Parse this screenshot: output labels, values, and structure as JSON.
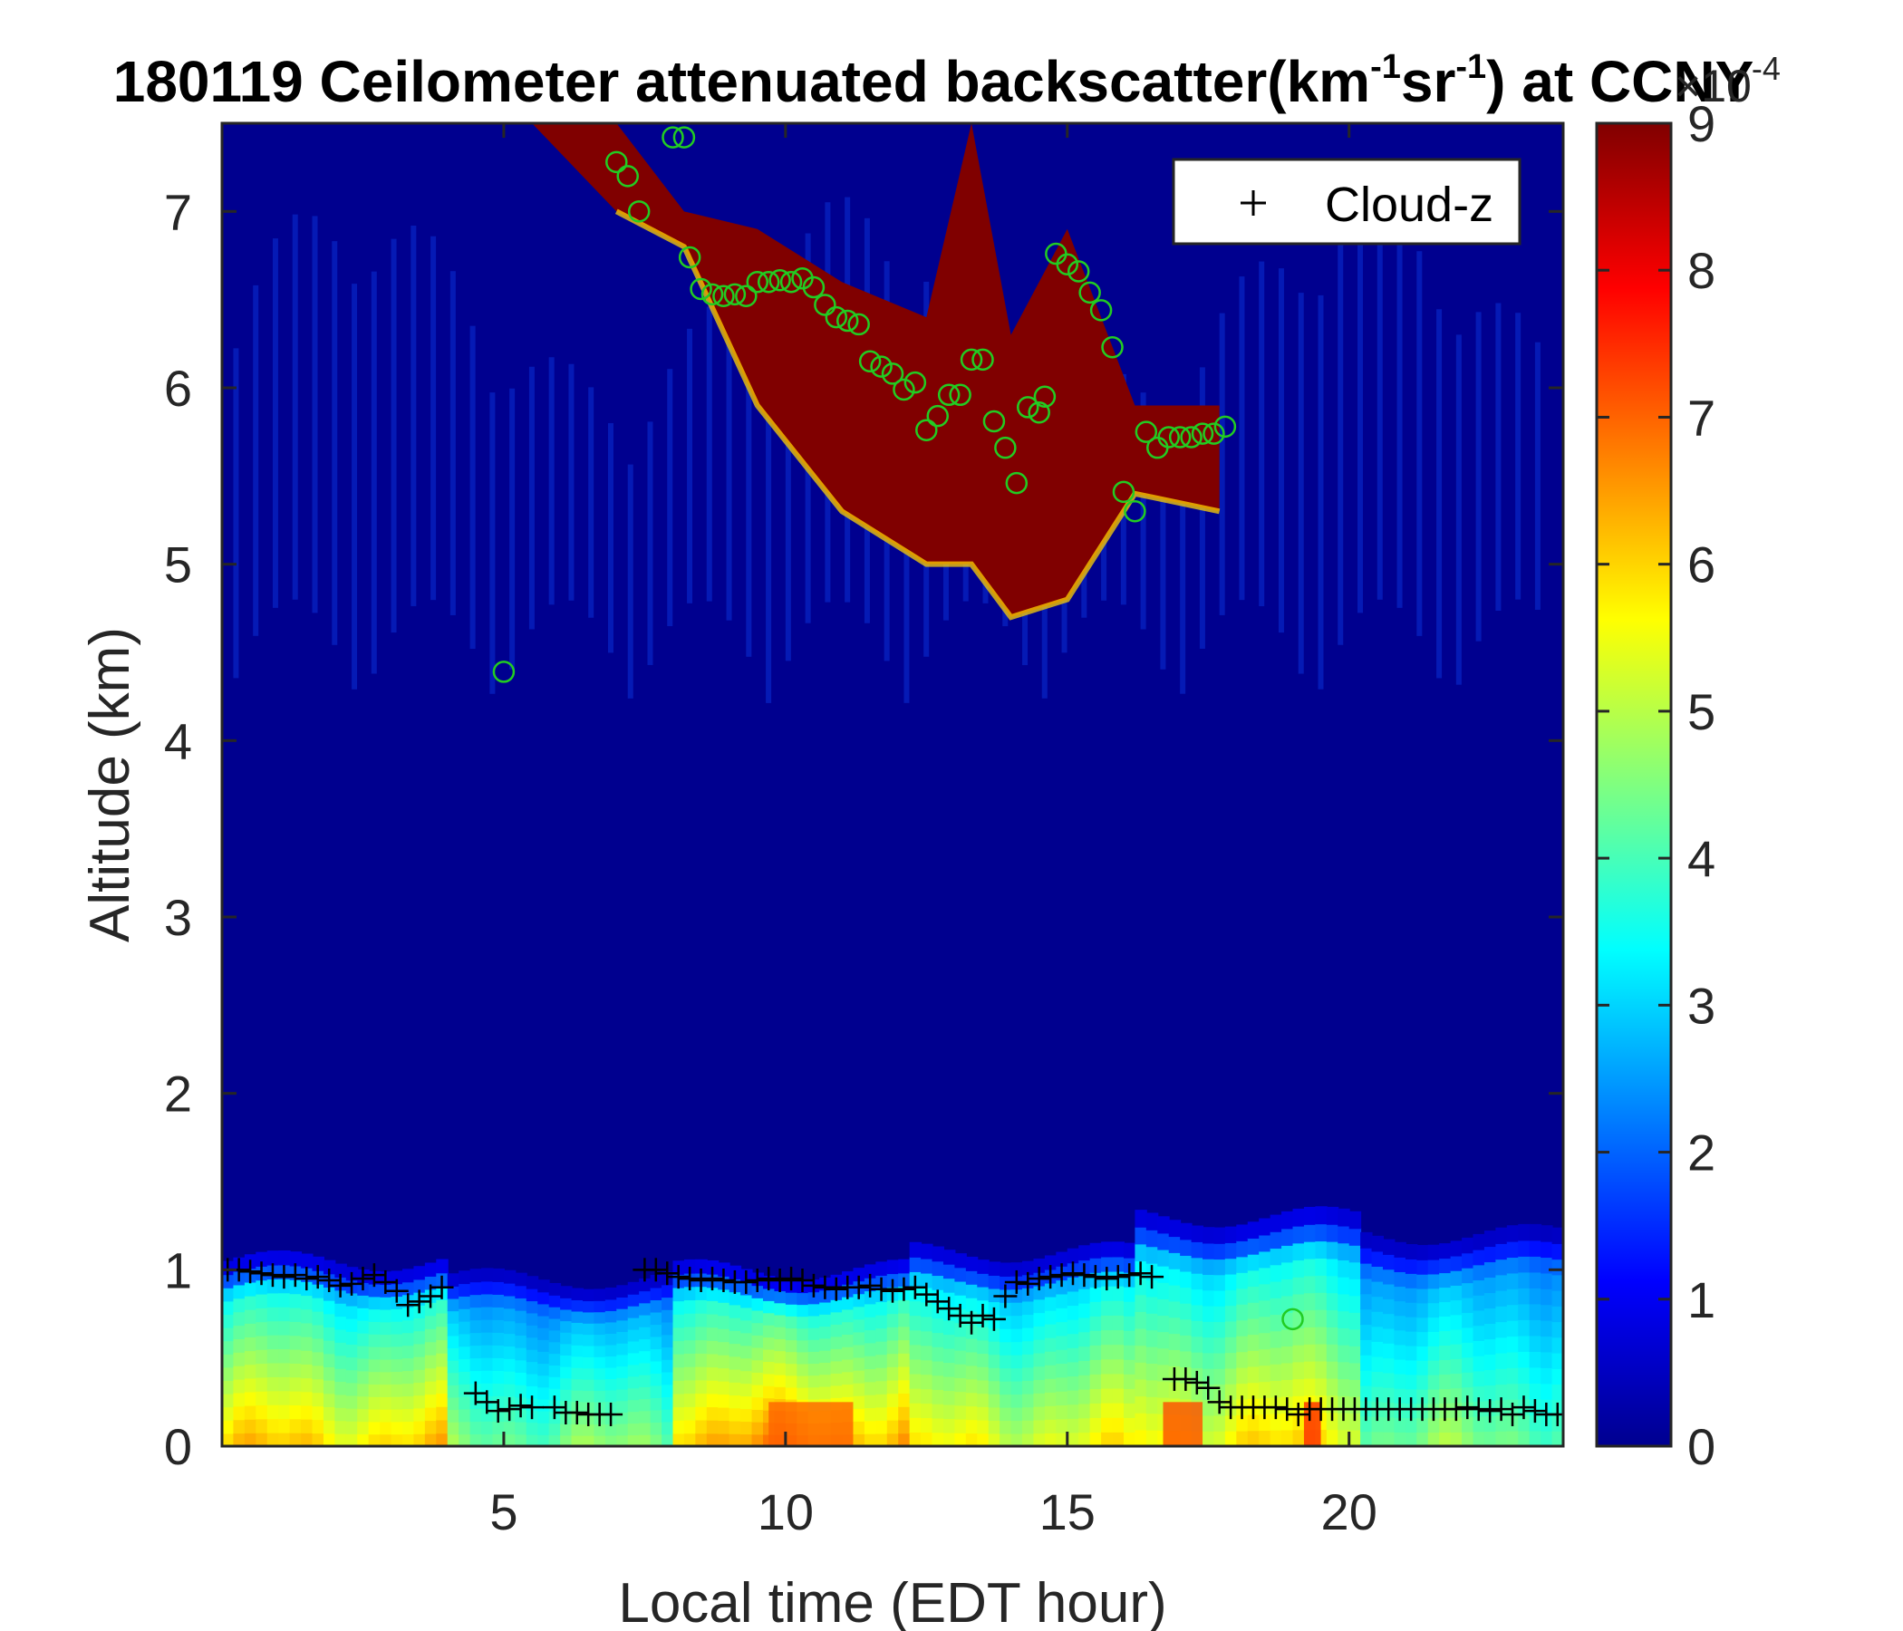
{
  "chart_data": {
    "type": "heatmap",
    "title": "180119 Ceilometer attenuated backscatter(km-1sr-1) at CCNY",
    "title_parts": {
      "prefix": "180119 Ceilometer attenuated backscatter(km",
      "sup1": "-1",
      "mid": "sr",
      "sup2": "-1",
      "suffix": ") at CCNY"
    },
    "xlabel": "Local time (EDT hour)",
    "ylabel": "Altitude (km)",
    "xlim": [
      0,
      23.8
    ],
    "ylim": [
      0,
      7.5
    ],
    "xticks": [
      5,
      10,
      15,
      20
    ],
    "yticks": [
      0,
      1,
      2,
      3,
      4,
      5,
      6,
      7
    ],
    "colorbar": {
      "colormap": "jet",
      "range": [
        0,
        9
      ],
      "ticks": [
        0,
        1,
        2,
        3,
        4,
        5,
        6,
        7,
        8,
        9
      ],
      "exponent_label": "×10",
      "exponent": "-4"
    },
    "legend": {
      "entries": [
        "Cloud-z"
      ],
      "position": "top-right",
      "marker": "+"
    },
    "colors": {
      "background": "#00008f",
      "cloud_core": "#800000",
      "circle_marker": "#22cc22",
      "plus_marker": "#000000"
    },
    "backscatter_profile": {
      "description_units": "x10^-4 km-1 sr-1",
      "segments": [
        {
          "x": [
            0,
            4
          ],
          "surface": 6.0,
          "layer_top": 1.05
        },
        {
          "x": [
            4,
            8
          ],
          "surface": 4.5,
          "layer_top": 0.95
        },
        {
          "x": [
            8,
            12
          ],
          "surface": 6.5,
          "layer_top": 1.0
        },
        {
          "x": [
            12,
            16
          ],
          "surface": 5.5,
          "layer_top": 1.1
        },
        {
          "x": [
            16,
            20
          ],
          "surface": 5.8,
          "layer_top": 1.3
        },
        {
          "x": [
            20,
            23.8
          ],
          "surface": 4.5,
          "layer_top": 1.2
        }
      ]
    },
    "cloud_layer": {
      "value": 9,
      "top_edge": [
        [
          5.5,
          7.5
        ],
        [
          7,
          7.5
        ],
        [
          8.2,
          7.0
        ],
        [
          9.5,
          6.9
        ],
        [
          11,
          6.6
        ],
        [
          12.5,
          6.4
        ],
        [
          13.3,
          7.5
        ],
        [
          14,
          6.3
        ],
        [
          15,
          6.9
        ],
        [
          16.2,
          5.9
        ],
        [
          17.7,
          5.9
        ]
      ],
      "bottom_edge": [
        [
          7,
          7.0
        ],
        [
          8.2,
          6.8
        ],
        [
          9.5,
          5.9
        ],
        [
          11,
          5.3
        ],
        [
          12.5,
          5.0
        ],
        [
          13.3,
          5.0
        ],
        [
          14,
          4.7
        ],
        [
          15,
          4.8
        ],
        [
          16.2,
          5.4
        ],
        [
          17.7,
          5.3
        ]
      ]
    },
    "series": [
      {
        "name": "Cloud-z",
        "marker": "+",
        "x": [
          0.1,
          0.3,
          0.5,
          0.7,
          0.9,
          1.1,
          1.3,
          1.5,
          1.7,
          1.9,
          2.1,
          2.3,
          2.5,
          2.7,
          2.9,
          3.1,
          3.3,
          3.5,
          3.7,
          3.9,
          4.5,
          4.7,
          4.9,
          5.1,
          5.3,
          5.5,
          5.9,
          6.1,
          6.3,
          6.5,
          6.7,
          6.9,
          7.5,
          7.7,
          7.9,
          8.1,
          8.3,
          8.5,
          8.7,
          8.9,
          9.1,
          9.3,
          9.5,
          9.7,
          9.9,
          10.1,
          10.3,
          10.5,
          10.7,
          10.9,
          11.1,
          11.3,
          11.5,
          11.7,
          11.9,
          12.1,
          12.3,
          12.5,
          12.7,
          12.9,
          13.1,
          13.3,
          13.5,
          13.7,
          13.9,
          14.1,
          14.3,
          14.5,
          14.7,
          14.9,
          15.1,
          15.3,
          15.5,
          15.7,
          15.9,
          16.1,
          16.3,
          16.5,
          16.9,
          17.1,
          17.3,
          17.5,
          17.7,
          17.9,
          18.1,
          18.3,
          18.5,
          18.7,
          18.9,
          19.1,
          19.3,
          19.5,
          19.7,
          19.9,
          20.1,
          20.3,
          20.5,
          20.7,
          20.9,
          21.1,
          21.3,
          21.5,
          21.7,
          21.9,
          22.1,
          22.3,
          22.5,
          22.7,
          22.9,
          23.1,
          23.3,
          23.5,
          23.7
        ],
        "y": [
          1.0,
          1.0,
          0.99,
          0.98,
          0.97,
          0.96,
          0.97,
          0.95,
          0.96,
          0.94,
          0.91,
          0.92,
          0.95,
          0.97,
          0.93,
          0.88,
          0.8,
          0.82,
          0.85,
          0.9,
          0.3,
          0.25,
          0.2,
          0.21,
          0.23,
          0.22,
          0.22,
          0.19,
          0.19,
          0.18,
          0.18,
          0.18,
          1.0,
          1.0,
          0.98,
          0.96,
          0.95,
          0.94,
          0.95,
          0.94,
          0.93,
          0.93,
          0.94,
          0.95,
          0.94,
          0.95,
          0.94,
          0.91,
          0.9,
          0.89,
          0.9,
          0.9,
          0.91,
          0.89,
          0.88,
          0.89,
          0.9,
          0.86,
          0.82,
          0.78,
          0.74,
          0.7,
          0.74,
          0.72,
          0.85,
          0.93,
          0.92,
          0.95,
          0.96,
          0.97,
          0.98,
          0.97,
          0.96,
          0.95,
          0.96,
          0.97,
          0.98,
          0.96,
          0.38,
          0.38,
          0.36,
          0.33,
          0.25,
          0.22,
          0.22,
          0.22,
          0.22,
          0.22,
          0.21,
          0.18,
          0.21,
          0.21,
          0.21,
          0.21,
          0.21,
          0.21,
          0.21,
          0.21,
          0.21,
          0.21,
          0.21,
          0.21,
          0.21,
          0.21,
          0.22,
          0.21,
          0.2,
          0.21,
          0.18,
          0.22,
          0.2,
          0.18,
          0.18
        ]
      },
      {
        "name": "",
        "marker": "o",
        "x": [
          5.0,
          7.0,
          7.2,
          7.4,
          8.0,
          8.2,
          8.3,
          8.5,
          8.7,
          8.9,
          9.1,
          9.3,
          9.5,
          9.7,
          9.9,
          10.1,
          10.3,
          10.5,
          10.7,
          10.9,
          11.1,
          11.3,
          11.5,
          11.7,
          11.9,
          12.1,
          12.3,
          12.5,
          12.7,
          12.9,
          13.1,
          13.3,
          13.5,
          13.7,
          13.9,
          14.1,
          14.3,
          14.5,
          14.6,
          14.8,
          15.0,
          15.2,
          15.4,
          15.6,
          15.8,
          16.0,
          16.2,
          16.4,
          16.6,
          16.8,
          17.0,
          17.2,
          17.4,
          17.6,
          17.8,
          19.0
        ],
        "y": [
          4.39,
          7.28,
          7.2,
          7.0,
          7.42,
          7.42,
          6.74,
          6.56,
          6.53,
          6.52,
          6.53,
          6.52,
          6.6,
          6.6,
          6.61,
          6.6,
          6.62,
          6.57,
          6.47,
          6.4,
          6.38,
          6.36,
          6.15,
          6.12,
          6.08,
          5.99,
          6.03,
          5.76,
          5.84,
          5.96,
          5.96,
          6.16,
          6.16,
          5.81,
          5.66,
          5.46,
          5.89,
          5.86,
          5.95,
          6.76,
          6.7,
          6.66,
          6.54,
          6.44,
          6.23,
          5.41,
          5.3,
          5.75,
          5.66,
          5.72,
          5.72,
          5.72,
          5.74,
          5.74,
          5.78,
          0.72
        ]
      }
    ]
  }
}
